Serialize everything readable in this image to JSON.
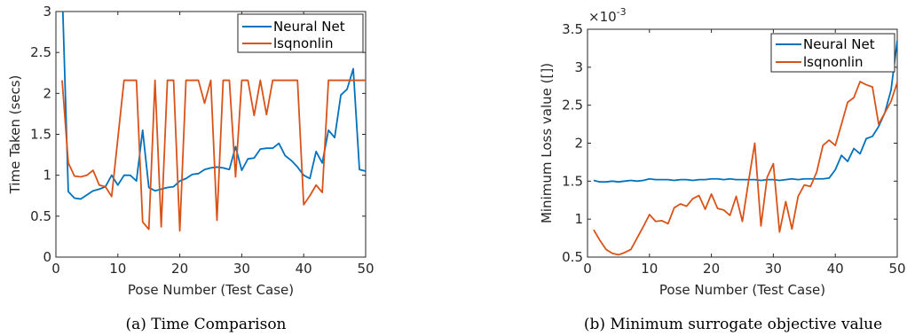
{
  "chart_data": [
    {
      "type": "line",
      "caption": "(a) Time Comparison",
      "xlabel": "Pose Number (Test Case)",
      "ylabel": "Time Taken (secs)",
      "xlim": [
        0,
        50
      ],
      "ylim": [
        0,
        3
      ],
      "xticks": [
        0,
        10,
        20,
        30,
        40,
        50
      ],
      "yticks": [
        0,
        0.5,
        1,
        1.5,
        2,
        2.5,
        3
      ],
      "ytick_labels": [
        "0",
        "0.5",
        "1",
        "1.5",
        "2",
        "2.5",
        "3"
      ],
      "grid": false,
      "legend_position": "top-right",
      "x": [
        1,
        2,
        3,
        4,
        5,
        6,
        7,
        8,
        9,
        10,
        11,
        12,
        13,
        14,
        15,
        16,
        17,
        18,
        19,
        20,
        21,
        22,
        23,
        24,
        25,
        26,
        27,
        28,
        29,
        30,
        31,
        32,
        33,
        34,
        35,
        36,
        37,
        38,
        39,
        40,
        41,
        42,
        43,
        44,
        45,
        46,
        47,
        48,
        49,
        50
      ],
      "series": [
        {
          "name": "Neural Net",
          "color": "#0072BD",
          "values": [
            3.3,
            0.8,
            0.72,
            0.71,
            0.76,
            0.81,
            0.83,
            0.86,
            1.0,
            0.88,
            1.0,
            1.0,
            0.93,
            1.55,
            0.85,
            0.81,
            0.83,
            0.85,
            0.86,
            0.93,
            0.96,
            1.01,
            1.02,
            1.07,
            1.09,
            1.1,
            1.09,
            1.07,
            1.35,
            1.06,
            1.2,
            1.21,
            1.32,
            1.33,
            1.33,
            1.39,
            1.24,
            1.18,
            1.1,
            1.0,
            0.96,
            1.29,
            1.15,
            1.55,
            1.46,
            1.98,
            2.05,
            2.3,
            1.07,
            1.05
          ]
        },
        {
          "name": "lsqnonlin",
          "color": "#D95319",
          "values": [
            2.16,
            1.15,
            0.99,
            0.98,
            1.0,
            1.06,
            0.88,
            0.86,
            0.74,
            1.45,
            2.16,
            2.16,
            2.16,
            0.43,
            0.34,
            2.16,
            0.37,
            2.16,
            2.16,
            0.32,
            2.16,
            2.16,
            2.16,
            1.88,
            2.16,
            0.45,
            2.16,
            2.16,
            0.98,
            2.16,
            2.16,
            1.73,
            2.16,
            1.74,
            2.16,
            2.16,
            2.16,
            2.16,
            2.16,
            0.64,
            0.75,
            0.88,
            0.79,
            2.16,
            2.16,
            2.16,
            2.16,
            2.16,
            2.16,
            2.16
          ]
        }
      ]
    },
    {
      "type": "line",
      "caption": "(b) Minimum surrogate objective value",
      "xlabel": "Pose Number (Test Case)",
      "ylabel": "Minimum Loss value ([])",
      "exponent_label": "×10",
      "exponent_power": "-3",
      "xlim": [
        0,
        50
      ],
      "ylim": [
        0.5,
        3.5
      ],
      "xticks": [
        0,
        10,
        20,
        30,
        40,
        50
      ],
      "yticks": [
        0.5,
        1,
        1.5,
        2,
        2.5,
        3,
        3.5
      ],
      "ytick_labels": [
        "0.5",
        "1",
        "1.5",
        "2",
        "2.5",
        "3",
        "3.5"
      ],
      "grid": false,
      "legend_position": "top-right",
      "x": [
        1,
        2,
        3,
        4,
        5,
        6,
        7,
        8,
        9,
        10,
        11,
        12,
        13,
        14,
        15,
        16,
        17,
        18,
        19,
        20,
        21,
        22,
        23,
        24,
        25,
        26,
        27,
        28,
        29,
        30,
        31,
        32,
        33,
        34,
        35,
        36,
        37,
        38,
        39,
        40,
        41,
        42,
        43,
        44,
        45,
        46,
        47,
        48,
        49,
        50
      ],
      "series": [
        {
          "name": "Neural Net",
          "color": "#0072BD",
          "values": [
            1.51,
            1.49,
            1.49,
            1.5,
            1.49,
            1.5,
            1.51,
            1.5,
            1.51,
            1.53,
            1.52,
            1.52,
            1.52,
            1.51,
            1.52,
            1.52,
            1.51,
            1.52,
            1.52,
            1.53,
            1.53,
            1.52,
            1.53,
            1.52,
            1.52,
            1.52,
            1.52,
            1.51,
            1.52,
            1.52,
            1.51,
            1.52,
            1.53,
            1.52,
            1.53,
            1.53,
            1.53,
            1.53,
            1.54,
            1.65,
            1.84,
            1.76,
            1.93,
            1.86,
            2.06,
            2.09,
            2.22,
            2.4,
            2.7,
            3.35
          ]
        },
        {
          "name": "lsqnonlin",
          "color": "#D95319",
          "values": [
            0.86,
            0.72,
            0.6,
            0.55,
            0.53,
            0.56,
            0.6,
            0.75,
            0.9,
            1.06,
            0.97,
            0.98,
            0.94,
            1.15,
            1.2,
            1.17,
            1.27,
            1.31,
            1.13,
            1.33,
            1.14,
            1.12,
            1.05,
            1.3,
            0.97,
            1.5,
            2.0,
            0.91,
            1.55,
            1.73,
            0.83,
            1.23,
            0.87,
            1.3,
            1.45,
            1.43,
            1.62,
            1.97,
            2.04,
            1.97,
            2.25,
            2.54,
            2.6,
            2.81,
            2.77,
            2.74,
            2.25,
            2.4,
            2.55,
            2.8
          ]
        }
      ]
    }
  ]
}
